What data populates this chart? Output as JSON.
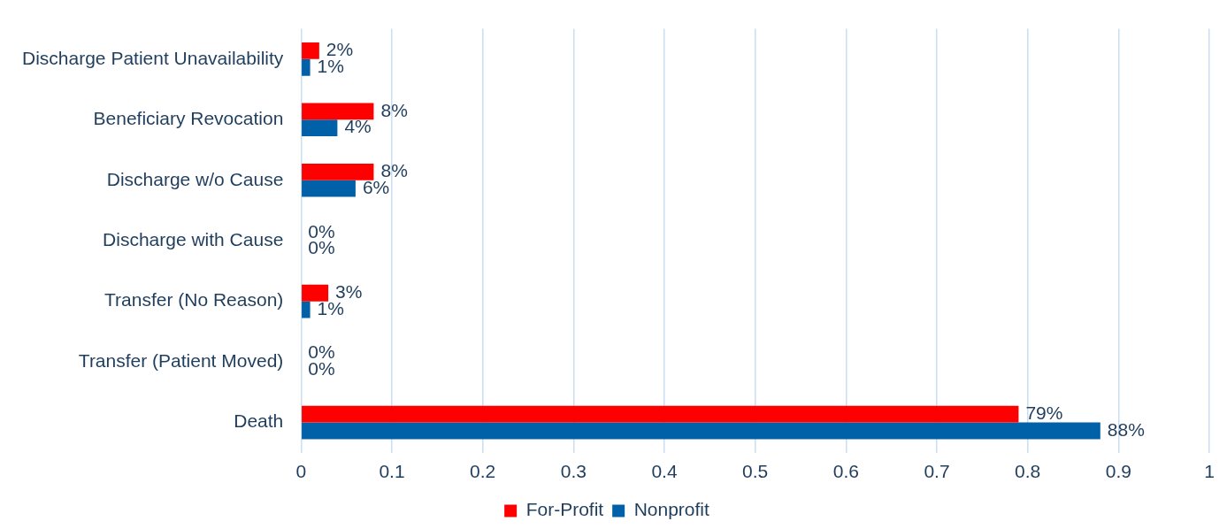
{
  "chart_data": {
    "type": "bar",
    "orientation": "horizontal",
    "categories": [
      "Discharge Patient Unavailability",
      "Beneficiary Revocation",
      "Discharge w/o Cause",
      "Discharge with Cause",
      "Transfer (No Reason)",
      "Transfer (Patient Moved)",
      "Death"
    ],
    "series": [
      {
        "name": "For-Profit",
        "color": "#ff0000",
        "values": [
          0.02,
          0.08,
          0.08,
          0,
          0.03,
          0,
          0.79
        ],
        "value_labels": [
          "2%",
          "8%",
          "8%",
          "0%",
          "3%",
          "0%",
          "79%"
        ]
      },
      {
        "name": "Nonprofit",
        "color": "#0060a8",
        "values": [
          0.01,
          0.04,
          0.06,
          0,
          0.01,
          0,
          0.88
        ],
        "value_labels": [
          "1%",
          "4%",
          "6%",
          "0%",
          "1%",
          "0%",
          "88%"
        ]
      }
    ],
    "xlim": [
      0,
      1
    ],
    "xticks": [
      0,
      0.1,
      0.2,
      0.3,
      0.4,
      0.5,
      0.6,
      0.7,
      0.8,
      0.9,
      1
    ],
    "grid": "x",
    "legend": "bottom"
  }
}
